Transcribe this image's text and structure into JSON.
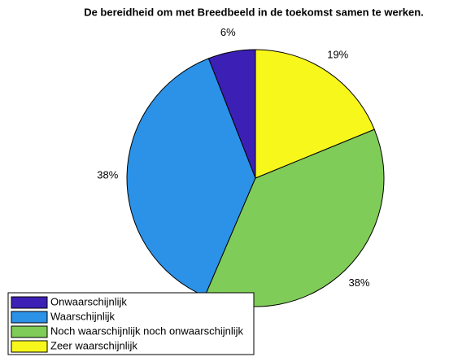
{
  "chart_data": {
    "type": "pie",
    "title": "De bereidheid om met Breedbeeld in de toekomst samen te werken.",
    "categories": [
      "Onwaarschijnlijk",
      "Waarschijnlijk",
      "Noch waarschijnlijk noch onwaarschijnlijk",
      "Zeer waarschijnlijk"
    ],
    "values": [
      6,
      38,
      38,
      19
    ],
    "value_labels": [
      "6%",
      "38%",
      "38%",
      "19%"
    ],
    "colors": [
      "#3c1fb4",
      "#2b92e8",
      "#80cc58",
      "#f7f71c"
    ],
    "legend": "lower left"
  }
}
